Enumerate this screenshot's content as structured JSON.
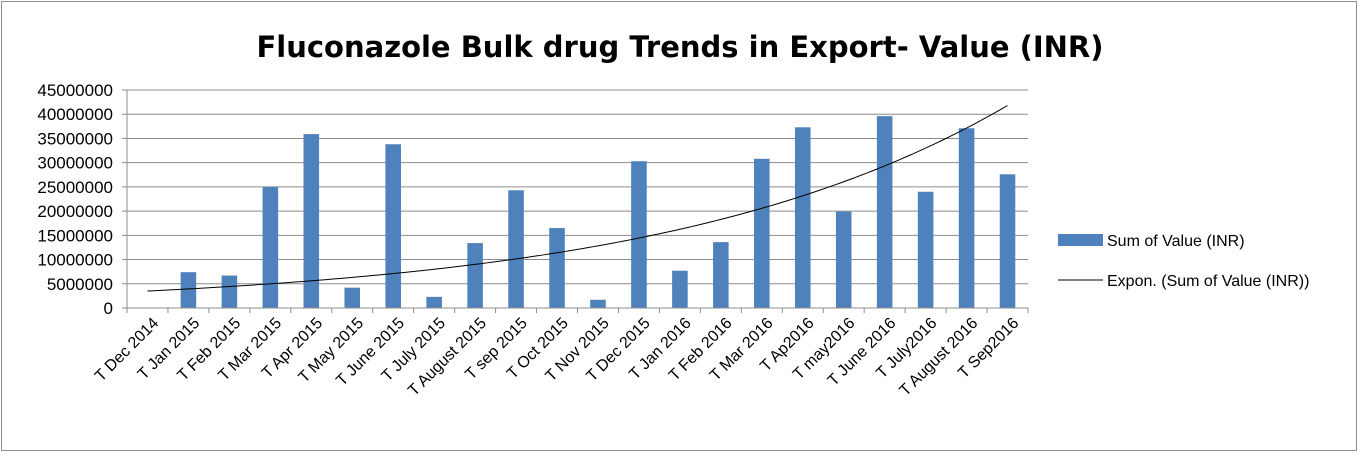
{
  "chart_data": {
    "type": "bar",
    "title": "Fluconazole Bulk drug Trends in Export- Value (INR)",
    "xlabel": "",
    "ylabel": "",
    "ylim": [
      0,
      45000000
    ],
    "yticks": [
      0,
      5000000,
      10000000,
      15000000,
      20000000,
      25000000,
      30000000,
      35000000,
      40000000,
      45000000
    ],
    "grid": true,
    "legend_position": "right",
    "categories": [
      "T Dec 2014",
      "T Jan 2015",
      "T Feb 2015",
      "T Mar 2015",
      "T Apr 2015",
      "T May 2015",
      "T June 2015",
      "T July 2015",
      "T August 2015",
      "T sep 2015",
      "T Oct 2015",
      "T Nov 2015",
      "T Dec 2015",
      "T Jan 2016",
      "T Feb 2016",
      "T Mar 2016",
      "T Ap2016",
      "T may2016",
      "T June 2016",
      "T July2016",
      "T August 2016",
      "T Sep2016"
    ],
    "series": [
      {
        "name": "Sum of Value (INR)",
        "color": "#4f81bd",
        "values": [
          0,
          7400000,
          6700000,
          25000000,
          35900000,
          4200000,
          33800000,
          2300000,
          13400000,
          24300000,
          16500000,
          1700000,
          30300000,
          7700000,
          13600000,
          30800000,
          37300000,
          19900000,
          39600000,
          24000000,
          37100000,
          27600000
        ]
      }
    ],
    "trendline": {
      "name": "Expon. (Sum of Value (INR))",
      "type": "exponential",
      "color": "#000000",
      "start_value": 3500000,
      "end_value": 41800000
    }
  }
}
